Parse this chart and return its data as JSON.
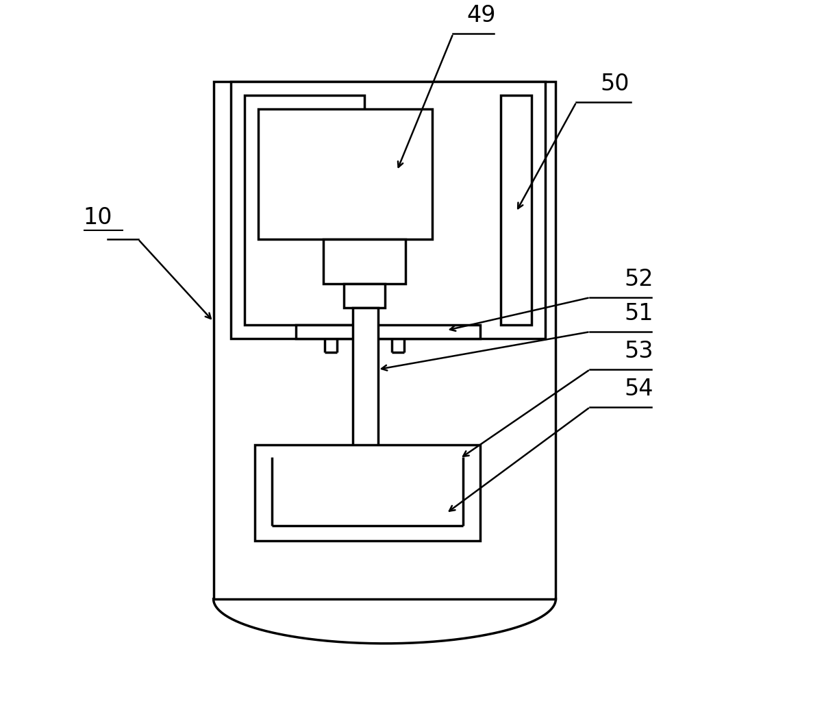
{
  "background_color": "#ffffff",
  "line_color": "#000000",
  "line_width": 2.5,
  "fig_width": 12.03,
  "fig_height": 10.33,
  "annotation_lw": 1.8,
  "label_fontsize": 24,
  "label_fontweight": "normal"
}
